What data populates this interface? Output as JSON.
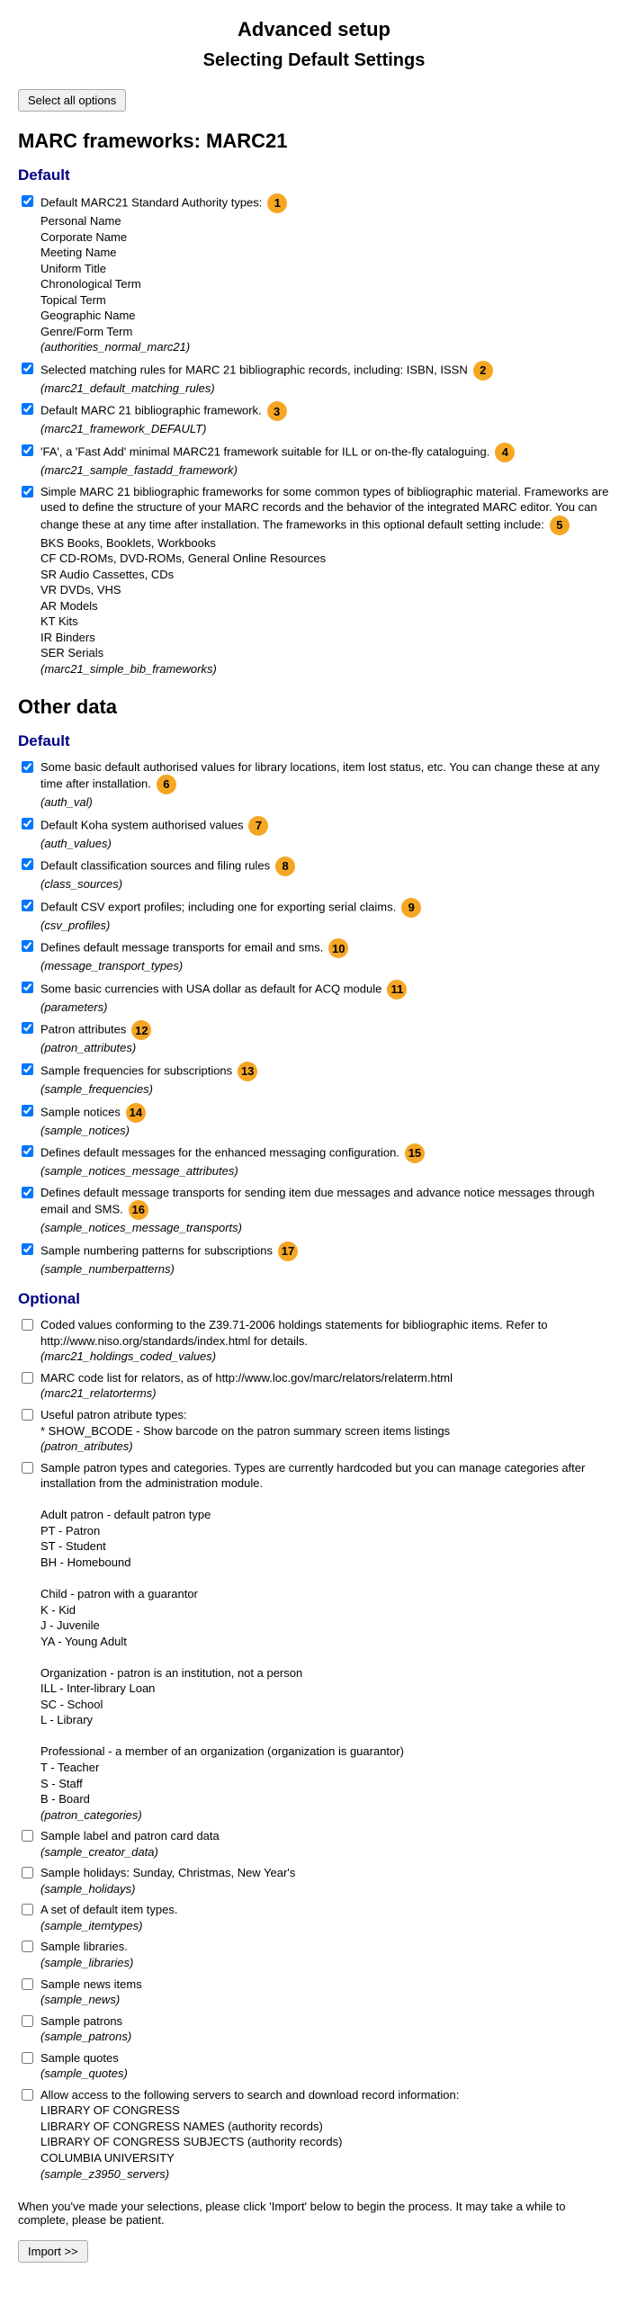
{
  "titles": {
    "main": "Advanced setup",
    "subtitle": "Selecting Default Settings",
    "marc_header": "MARC frameworks: MARC21",
    "other_data": "Other data"
  },
  "buttons": {
    "select_all": "Select all options",
    "import": "Import >>"
  },
  "group_labels": {
    "default": "Default",
    "optional": "Optional"
  },
  "marc_default": [
    {
      "checked": true,
      "lines": [
        "Default MARC21 Standard Authority types:",
        "Personal Name",
        "Corporate Name",
        "Meeting Name",
        "Uniform Title",
        "Chronological Term",
        "Topical Term",
        "Geographic Name",
        "Genre/Form Term"
      ],
      "slug": "(authorities_normal_marc21)",
      "badge": "1"
    },
    {
      "checked": true,
      "lines": [
        "Selected matching rules for MARC 21 bibliographic records, including: ISBN, ISSN"
      ],
      "slug": "(marc21_default_matching_rules)",
      "badge": "2"
    },
    {
      "checked": true,
      "lines": [
        "Default MARC 21 bibliographic framework."
      ],
      "slug": "(marc21_framework_DEFAULT)",
      "badge": "3"
    },
    {
      "checked": true,
      "lines": [
        "'FA', a 'Fast Add' minimal MARC21 framework suitable for ILL or on-the-fly cataloguing."
      ],
      "slug": "(marc21_sample_fastadd_framework)",
      "badge": "4"
    },
    {
      "checked": true,
      "lines": [
        "Simple MARC 21 bibliographic frameworks for some common types of bibliographic material. Frameworks are used to define the structure of your MARC records and the behavior of the integrated MARC editor. You can change these at any time after installation. The frameworks in this optional default setting include:",
        "BKS Books, Booklets, Workbooks",
        "CF CD-ROMs, DVD-ROMs, General Online Resources",
        "SR Audio Cassettes, CDs",
        "VR DVDs, VHS",
        "AR Models",
        "KT Kits",
        "IR Binders",
        "SER Serials"
      ],
      "slug": "(marc21_simple_bib_frameworks)",
      "badge": "5"
    }
  ],
  "other_default": [
    {
      "checked": true,
      "lines": [
        "Some basic default authorised values for library locations, item lost status, etc. You can change these at any time after installation."
      ],
      "slug": "(auth_val)",
      "badge": "6"
    },
    {
      "checked": true,
      "lines": [
        "Default Koha system authorised values"
      ],
      "slug": "(auth_values)",
      "badge": "7"
    },
    {
      "checked": true,
      "lines": [
        "Default classification sources and filing rules"
      ],
      "slug": "(class_sources)",
      "badge": "8"
    },
    {
      "checked": true,
      "lines": [
        "Default CSV export profiles; including one for exporting serial claims."
      ],
      "slug": "(csv_profiles)",
      "badge": "9"
    },
    {
      "checked": true,
      "lines": [
        "Defines default message transports for email and sms."
      ],
      "slug": "(message_transport_types)",
      "badge": "10"
    },
    {
      "checked": true,
      "lines": [
        "Some basic currencies with USA dollar as default for ACQ module"
      ],
      "slug": "(parameters)",
      "badge": "11"
    },
    {
      "checked": true,
      "lines": [
        "Patron attributes"
      ],
      "slug": "(patron_attributes)",
      "badge": "12"
    },
    {
      "checked": true,
      "lines": [
        "Sample frequencies for subscriptions"
      ],
      "slug": "(sample_frequencies)",
      "badge": "13"
    },
    {
      "checked": true,
      "lines": [
        "Sample notices"
      ],
      "slug": "(sample_notices)",
      "badge": "14"
    },
    {
      "checked": true,
      "lines": [
        "Defines default messages for the enhanced messaging configuration."
      ],
      "slug": "(sample_notices_message_attributes)",
      "badge": "15"
    },
    {
      "checked": true,
      "lines": [
        "Defines default message transports for sending item due messages and advance notice messages through email and SMS."
      ],
      "slug": "(sample_notices_message_transports)",
      "badge": "16"
    },
    {
      "checked": true,
      "lines": [
        "Sample numbering patterns for subscriptions"
      ],
      "slug": "(sample_numberpatterns)",
      "badge": "17"
    }
  ],
  "other_optional": [
    {
      "checked": false,
      "lines": [
        "Coded values conforming to the Z39.71-2006 holdings statements for bibliographic items. Refer to http://www.niso.org/standards/index.html for details."
      ],
      "slug": "(marc21_holdings_coded_values)"
    },
    {
      "checked": false,
      "lines": [
        "MARC code list for relators, as of http://www.loc.gov/marc/relators/relaterm.html"
      ],
      "slug": "(marc21_relatorterms)"
    },
    {
      "checked": false,
      "lines": [
        "Useful patron atribute types:",
        "* SHOW_BCODE - Show barcode on the patron summary screen items listings"
      ],
      "slug": "(patron_atributes)"
    },
    {
      "checked": false,
      "lines": [
        "Sample patron types and categories. Types are currently hardcoded but you can manage categories after installation from the administration module.",
        "",
        "Adult patron - default patron type",
        "PT - Patron",
        "ST - Student",
        "BH - Homebound",
        "",
        "Child - patron with a guarantor",
        "K - Kid",
        "J - Juvenile",
        "YA - Young Adult",
        "",
        "Organization - patron is an institution, not a person",
        "ILL - Inter-library Loan",
        "SC - School",
        "L - Library",
        "",
        "Professional - a member of an organization (organization is guarantor)",
        "T - Teacher",
        "S - Staff",
        "B - Board"
      ],
      "slug": "(patron_categories)"
    },
    {
      "checked": false,
      "lines": [
        "Sample label and patron card data"
      ],
      "slug": "(sample_creator_data)"
    },
    {
      "checked": false,
      "lines": [
        "Sample holidays: Sunday, Christmas, New Year's"
      ],
      "slug": "(sample_holidays)"
    },
    {
      "checked": false,
      "lines": [
        "A set of default item types."
      ],
      "slug": "(sample_itemtypes)"
    },
    {
      "checked": false,
      "lines": [
        "Sample libraries."
      ],
      "slug": "(sample_libraries)"
    },
    {
      "checked": false,
      "lines": [
        "Sample news items"
      ],
      "slug": "(sample_news)"
    },
    {
      "checked": false,
      "lines": [
        "Sample patrons"
      ],
      "slug": "(sample_patrons)"
    },
    {
      "checked": false,
      "lines": [
        "Sample quotes"
      ],
      "slug": "(sample_quotes)"
    },
    {
      "checked": false,
      "lines": [
        "Allow access to the following servers to search and download record information:",
        "LIBRARY OF CONGRESS",
        "LIBRARY OF CONGRESS NAMES (authority records)",
        "LIBRARY OF CONGRESS SUBJECTS (authority records)",
        "COLUMBIA UNIVERSITY"
      ],
      "slug": "(sample_z3950_servers)"
    }
  ],
  "footer_text": "When you've made your selections, please click 'Import' below to begin the process. It may take a while to complete, please be patient."
}
